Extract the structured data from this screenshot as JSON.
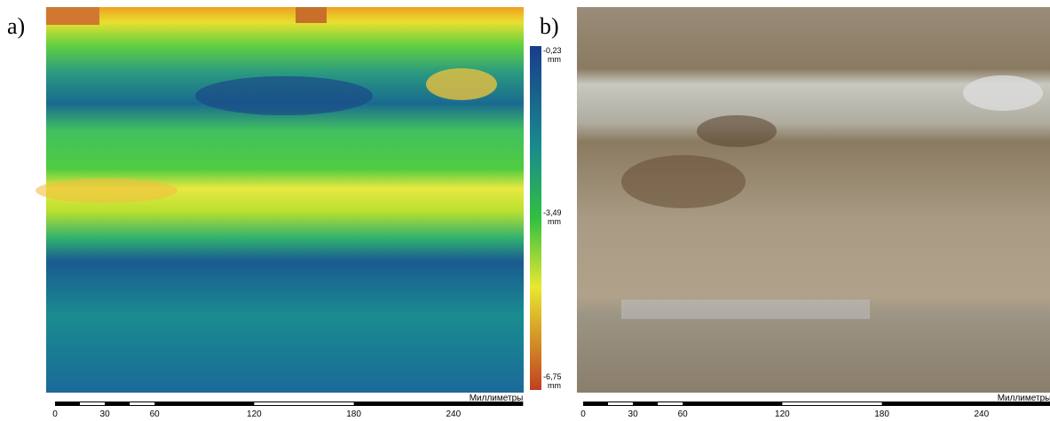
{
  "panels": [
    {
      "label": "a)",
      "colorbar": [
        {
          "value": "-0,23",
          "unit": "mm"
        },
        {
          "value": "-3,49",
          "unit": "mm"
        },
        {
          "value": "-6,75",
          "unit": "mm"
        }
      ],
      "scale_bar": {
        "ticks": [
          0,
          30,
          60,
          120,
          180,
          240
        ],
        "unit": "Миллиметры"
      }
    },
    {
      "label": "b)",
      "scale_bar": {
        "ticks": [
          0,
          30,
          60,
          120,
          180,
          240
        ],
        "unit": "Миллиметры"
      }
    }
  ]
}
